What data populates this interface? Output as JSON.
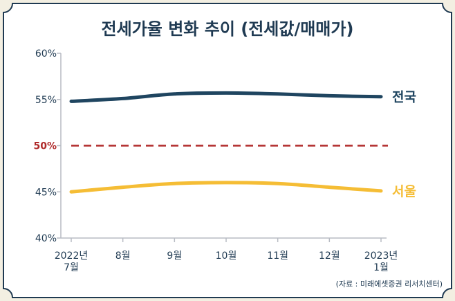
{
  "chart_data": {
    "type": "line",
    "title": "전세가율 변화 추이 (전세값/매매가)",
    "categories": [
      [
        "2022년",
        "7월"
      ],
      [
        "8월"
      ],
      [
        "9월"
      ],
      [
        "10월"
      ],
      [
        "11월"
      ],
      [
        "12월"
      ],
      [
        "2023년",
        "1월"
      ]
    ],
    "yticks": [
      "40%",
      "45%",
      "50%",
      "55%",
      "60%"
    ],
    "ylim": [
      40,
      60
    ],
    "reference_line": {
      "value": 50,
      "label": "50%",
      "style": "dashed",
      "color": "#b02a2a"
    },
    "series": [
      {
        "name": "전국",
        "values": [
          54.8,
          55.1,
          55.6,
          55.7,
          55.6,
          55.4,
          55.3
        ],
        "color": "#1f4560"
      },
      {
        "name": "서울",
        "values": [
          45.0,
          45.5,
          45.9,
          46.0,
          45.9,
          45.5,
          45.1
        ],
        "color": "#f5bd35"
      }
    ],
    "source": "(자료 : 미래에셋증권 리서치센터)",
    "grid": false,
    "colors": {
      "background": "#f3efe2",
      "panel": "#ffffff",
      "border": "#1f3a52",
      "text": "#1f3a52",
      "axis": "#b8bcc4"
    }
  }
}
